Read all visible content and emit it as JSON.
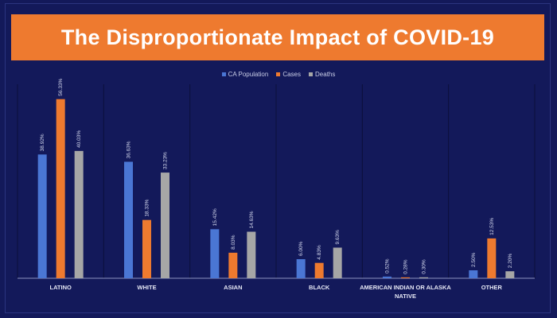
{
  "chart_data": {
    "type": "bar",
    "title": "The Disproportionate Impact of COVID-19",
    "categories": [
      "LATINO",
      "WHITE",
      "ASIAN",
      "BLACK",
      "AMERICAN INDIAN OR ALASKA NATIVE",
      "OTHER"
    ],
    "series": [
      {
        "name": "CA Population",
        "values": [
          38.92,
          36.63,
          15.42,
          6.0,
          0.52,
          2.5
        ],
        "labels": [
          "38.92%",
          "36.63%",
          "15.42%",
          "6.00%",
          "0.52%",
          "2.50%"
        ],
        "color": "#4a76d4"
      },
      {
        "name": "Cases",
        "values": [
          56.33,
          18.33,
          8.03,
          4.83,
          0.28,
          12.53
        ],
        "labels": [
          "56.33%",
          "18.33%",
          "8.03%",
          "4.83%",
          "0.28%",
          "12.53%"
        ],
        "color": "#ee7a2f"
      },
      {
        "name": "Deaths",
        "values": [
          40.03,
          33.23,
          14.63,
          9.63,
          0.3,
          2.2
        ],
        "labels": [
          "40.03%",
          "33.23%",
          "14.63%",
          "9.63%",
          "0.30%",
          "2.20%"
        ],
        "color": "#a6a6a6"
      }
    ],
    "ylim": [
      0,
      57
    ],
    "legend": "top-center",
    "grid": false,
    "xlabel": "",
    "ylabel": ""
  }
}
